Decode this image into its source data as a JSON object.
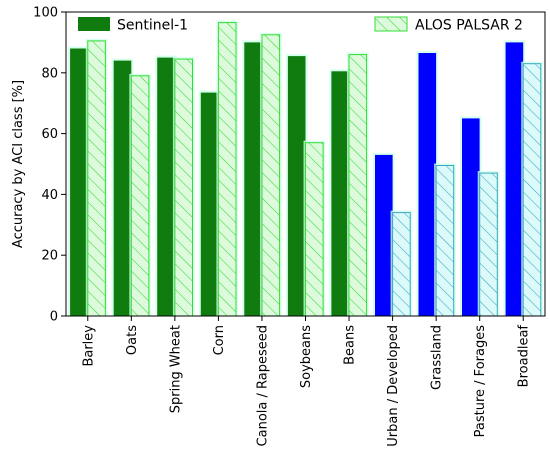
{
  "chart_data": {
    "type": "bar",
    "title": "",
    "xlabel": "",
    "ylabel": "Accuracy by ACI class [%]",
    "ylim": [
      0,
      100
    ],
    "yticks": [
      0,
      20,
      40,
      60,
      80,
      100
    ],
    "grid": false,
    "legend_placement": "top",
    "categories": [
      "Barley",
      "Oats",
      "Spring Wheat",
      "Corn",
      "Canola / Rapeseed",
      "Soybeans",
      "Beans",
      "Urban / Developed",
      "Grassland",
      "Pasture / Forages",
      "Broadleaf"
    ],
    "crop_categories": [
      "Barley",
      "Oats",
      "Spring Wheat",
      "Corn",
      "Canola / Rapeseed",
      "Soybeans",
      "Beans"
    ],
    "series": [
      {
        "name": "Sentinel-1",
        "values": [
          88,
          84,
          85,
          73.5,
          90,
          85.5,
          80.5,
          53,
          86.5,
          65,
          90
        ],
        "style": "solid"
      },
      {
        "name": "ALOS PALSAR 2",
        "values": [
          90.5,
          79,
          84.5,
          96.5,
          92.5,
          57,
          86,
          34,
          49.5,
          47,
          83
        ],
        "style": "hatched"
      }
    ],
    "colors": {
      "crop_fill": "#107c10",
      "other_fill": "#0000ff",
      "crop_hatch_edge": "#33dd33",
      "crop_hatch_bg": "#ddfadd",
      "other_hatch_edge": "#36a9c3",
      "other_hatch_bg": "#dcfafa",
      "glow": "#ccffe9"
    }
  }
}
